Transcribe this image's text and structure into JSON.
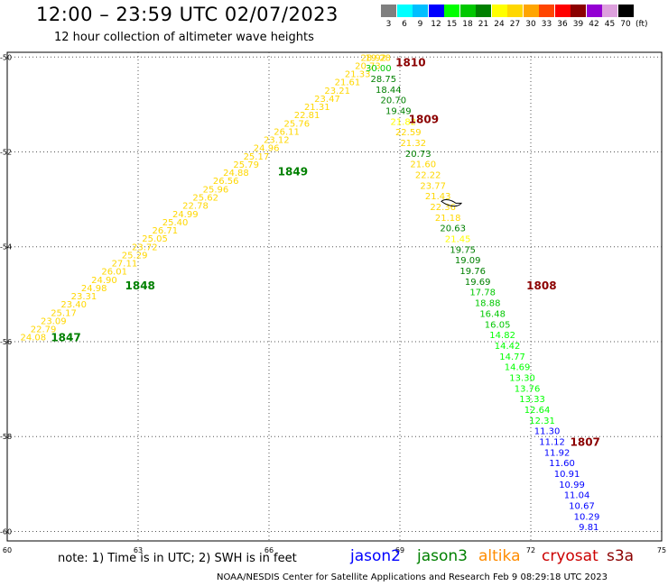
{
  "header": {
    "title": "12:00 – 23:59 UTC 02/07/2023",
    "subtitle": "12 hour collection of altimeter wave heights"
  },
  "colorbar": {
    "labels": [
      "3",
      "6",
      "9",
      "12",
      "15",
      "18",
      "21",
      "24",
      "27",
      "30",
      "33",
      "36",
      "39",
      "42",
      "45",
      "70"
    ],
    "unit": "(ft)",
    "colors": [
      "#7f7f7f",
      "#00ffff",
      "#00bfff",
      "#0000ff",
      "#00ff00",
      "#00c800",
      "#008000",
      "#ffff00",
      "#ffd700",
      "#ffa500",
      "#ff4500",
      "#ff0000",
      "#8b0000",
      "#9400d3",
      "#dda0dd",
      "#000000"
    ]
  },
  "axes": {
    "x_ticks": [
      "60",
      "63",
      "66",
      "69",
      "72",
      "75"
    ],
    "y_ticks": [
      "-50",
      "-52",
      "-54",
      "-56",
      "-58",
      "-60"
    ]
  },
  "chart_data": {
    "type": "scatter",
    "xlim": [
      60,
      75
    ],
    "ylim": [
      -60.2,
      -49.9
    ],
    "grid": true,
    "pass_labels": [
      {
        "label": "1810",
        "lon": 68.9,
        "lat": -50.1,
        "color": "#8b0000"
      },
      {
        "label": "1809",
        "lon": 69.2,
        "lat": -51.3,
        "color": "#8b0000"
      },
      {
        "label": "1849",
        "lon": 66.2,
        "lat": -52.4,
        "color": "#008000"
      },
      {
        "label": "1808",
        "lon": 71.9,
        "lat": -54.8,
        "color": "#8b0000"
      },
      {
        "label": "1848",
        "lon": 62.7,
        "lat": -54.8,
        "color": "#008000"
      },
      {
        "label": "1847",
        "lon": 61.0,
        "lat": -55.9,
        "color": "#008000"
      },
      {
        "label": "1807",
        "lon": 72.9,
        "lat": -58.1,
        "color": "#8b0000"
      }
    ],
    "track_west": {
      "start": [
        60.3,
        -55.9
      ],
      "end": [
        68.2,
        -50.0
      ],
      "values": [
        "24.08",
        "22.79",
        "23.09",
        "25.17",
        "23.40",
        "23.31",
        "24.98",
        "24.90",
        "26.01",
        "27.11",
        "25.29",
        "23.72",
        "25.05",
        "26.71",
        "25.40",
        "24.99",
        "22.78",
        "25.62",
        "25.96",
        "26.56",
        "24.88",
        "25.79",
        "25.17",
        "24.96",
        "23.12",
        "26.11",
        "25.76",
        "22.81",
        "21.31",
        "23.47",
        "23.21",
        "21.61",
        "21.33",
        "20.73",
        "19.28"
      ],
      "color": "#ffd700"
    },
    "track_east": {
      "start": [
        68.1,
        -50.0
      ],
      "end": [
        73.1,
        -59.9
      ],
      "values": [
        "28.92",
        "30.00",
        "28.75",
        "18.44",
        "20.70",
        "19.49",
        "21.82",
        "22.59",
        "21.32",
        "20.73",
        "21.60",
        "22.22",
        "23.77",
        "21.43",
        "22.36",
        "21.18",
        "20.63",
        "21.45",
        "19.75",
        "19.09",
        "19.76",
        "19.69",
        "17.78",
        "18.88",
        "16.48",
        "16.05",
        "14.82",
        "14.42",
        "14.77",
        "14.69",
        "13.30",
        "13.76",
        "13.33",
        "12.64",
        "12.31",
        "11.30",
        "11.12",
        "11.92",
        "11.60",
        "10.91",
        "10.99",
        "11.04",
        "10.67",
        "10.29",
        "9.81"
      ],
      "colors": [
        "#ffd700",
        "#00c800",
        "#008000",
        "#008000",
        "#008000",
        "#008000",
        "#ffff00",
        "#ffd700",
        "#ffd700",
        "#008000",
        "#ffd700",
        "#ffd700",
        "#ffd700",
        "#ffd700",
        "#ffd700",
        "#ffd700",
        "#008000",
        "#ffff00",
        "#008000",
        "#008000",
        "#008000",
        "#008000",
        "#00c800",
        "#00c800",
        "#00c800",
        "#00c800",
        "#00ff00",
        "#00ff00",
        "#00ff00",
        "#00ff00",
        "#00ff00",
        "#00ff00",
        "#00ff00",
        "#00ff00",
        "#00ff00",
        "#0000ff",
        "#0000ff",
        "#0000ff",
        "#0000ff",
        "#0000ff",
        "#0000ff",
        "#0000ff",
        "#0000ff",
        "#0000ff",
        "#0000ff"
      ]
    },
    "island": {
      "lon": 70.2,
      "lat": -53.1,
      "color": "#000000"
    }
  },
  "note": "note: 1) Time is in UTC; 2) SWH is in feet",
  "missions": [
    {
      "name": "jason2",
      "color": "#0000ff"
    },
    {
      "name": "jason3",
      "color": "#008000"
    },
    {
      "name": "altika",
      "color": "#ff8c00"
    },
    {
      "name": "cryosat",
      "color": "#cc0000"
    },
    {
      "name": "s3a",
      "color": "#8b0000"
    }
  ],
  "footer": "NOAA/NESDIS Center for Satellite Applications and Research    Feb  9 08:29:18 UTC 2023"
}
